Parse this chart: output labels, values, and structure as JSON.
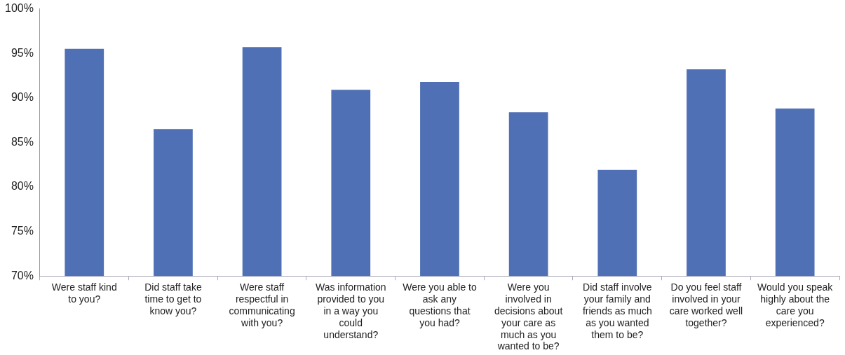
{
  "chart_data": {
    "type": "bar",
    "categories": [
      "Were staff kind to you?",
      "Did staff take time to get to know you?",
      "Were staff respectful in communicating with you?",
      "Was information provided to you in a way you could understand?",
      "Were you able to ask any questions that you had?",
      "Were you involved in decisions about your care as much as you wanted to be?",
      "Did staff involve your family and friends as much as you wanted them to be?",
      "Do you feel staff involved in your care worked well together?",
      "Would you speak highly about the care you experienced?"
    ],
    "values": [
      95.5,
      86.5,
      95.7,
      90.9,
      91.8,
      88.4,
      81.9,
      93.2,
      88.8
    ],
    "color": "#4f70b5",
    "ylim": [
      70,
      100
    ],
    "yticks": [
      {
        "value": 70,
        "label": "70%"
      },
      {
        "value": 75,
        "label": "75%"
      },
      {
        "value": 80,
        "label": "80%"
      },
      {
        "value": 85,
        "label": "85%"
      },
      {
        "value": 90,
        "label": "90%"
      },
      {
        "value": 95,
        "label": "95%"
      },
      {
        "value": 100,
        "label": "100%"
      }
    ],
    "grid": false,
    "legend": false
  }
}
